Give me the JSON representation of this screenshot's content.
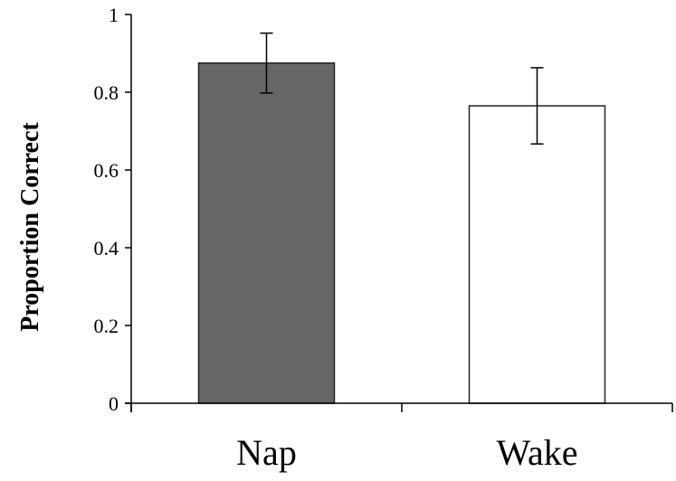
{
  "chart_data": {
    "type": "bar",
    "categories": [
      "Nap",
      "Wake"
    ],
    "values": [
      0.875,
      0.765
    ],
    "error": [
      0.077,
      0.098
    ],
    "ylabel": "Proportion Correct",
    "xlabel": "",
    "ylim": [
      0,
      1
    ],
    "yticks": [
      0,
      0.2,
      0.4,
      0.6,
      0.8,
      1
    ],
    "ytick_labels": [
      "0",
      "0.2",
      "0.4",
      "0.6",
      "0.8",
      "1"
    ],
    "grid": false,
    "legend": "none",
    "colors": {
      "bar_fills": [
        "#666666",
        "#ffffff"
      ],
      "bar_stroke": "#222222",
      "axis": "#000000"
    }
  }
}
